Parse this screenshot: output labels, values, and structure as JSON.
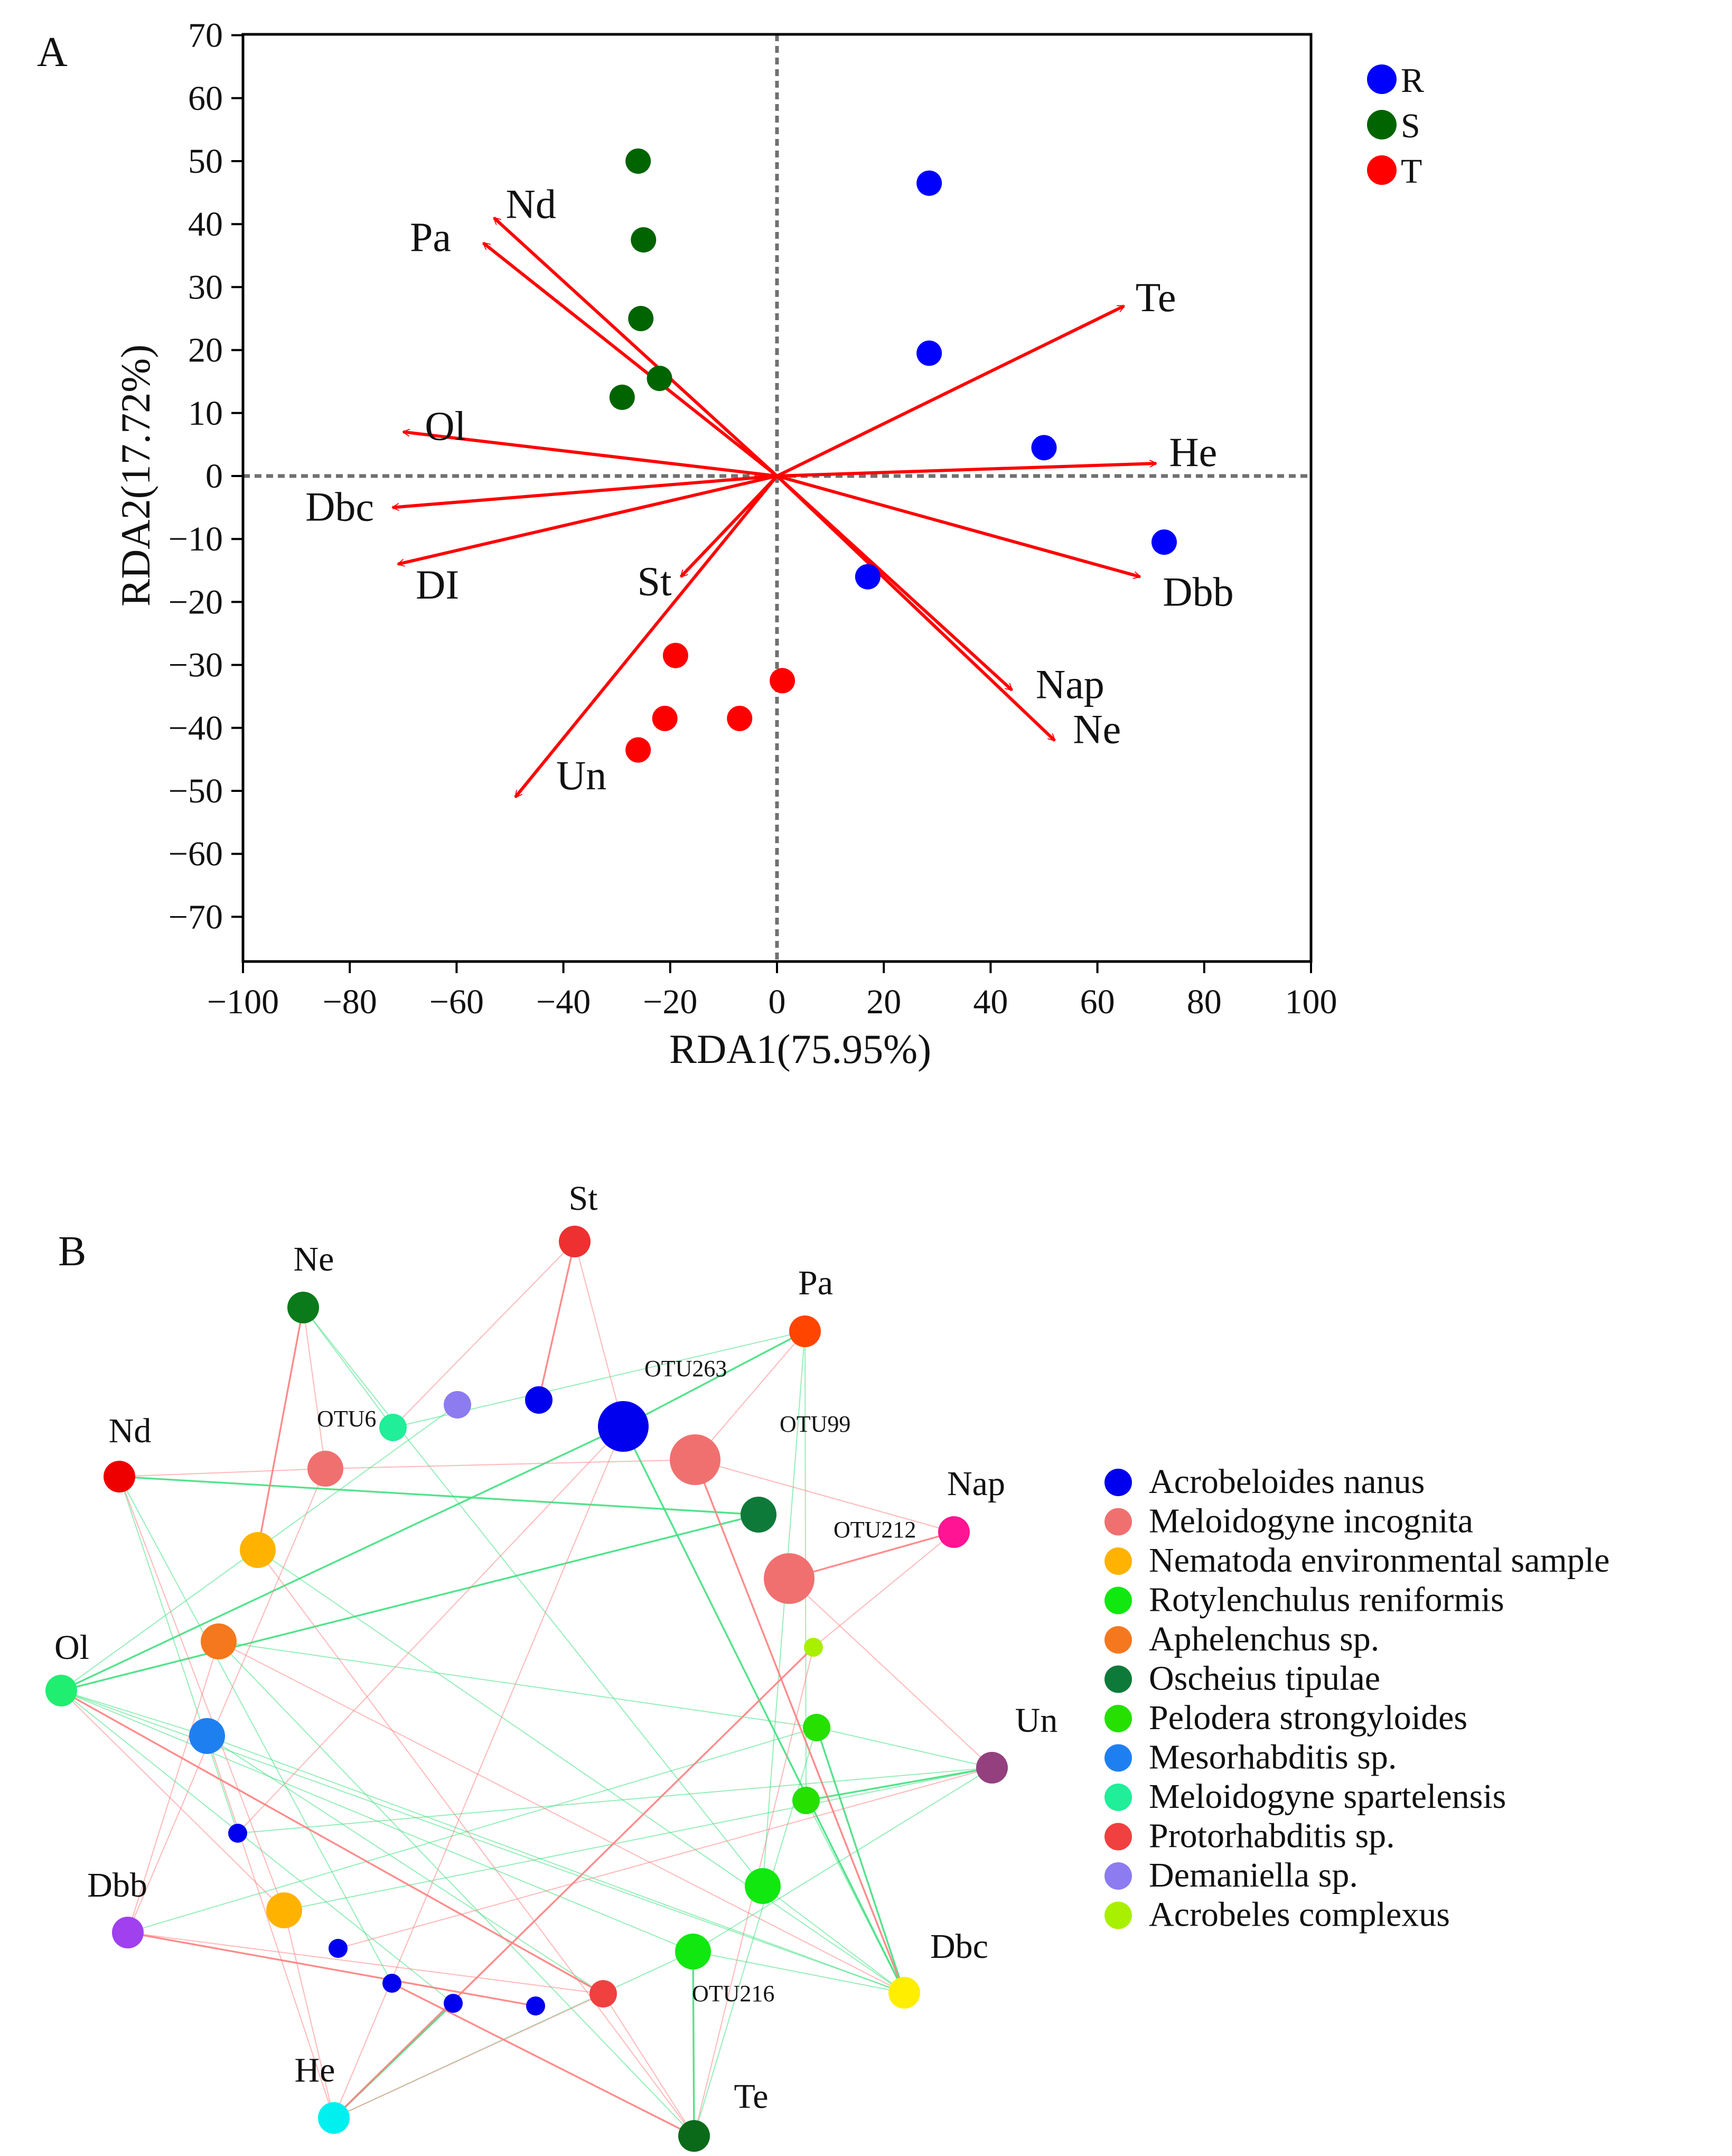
{
  "panel_a_label": "A",
  "panel_b_label": "B",
  "colors": {
    "R": "#0000ff",
    "S": "#006400",
    "T": "#ff0000",
    "arrow": "#ff0000",
    "axis": "#000000",
    "zero_line": "#707070",
    "edge_positive": "#ff8080",
    "edge_negative": "#40e080"
  },
  "chart_data": [
    {
      "type": "scatter",
      "title": "",
      "xlabel": "RDA1(75.95%)",
      "ylabel": "RDA2(17.72%)",
      "xlim": [
        -100,
        100
      ],
      "ylim": [
        -78,
        70
      ],
      "xticks": [
        -100,
        -80,
        -60,
        -40,
        -20,
        0,
        20,
        40,
        60,
        80,
        100
      ],
      "yticks": [
        70,
        60,
        50,
        40,
        30,
        20,
        10,
        0,
        -10,
        -20,
        -30,
        -40,
        -50,
        -60,
        -70
      ],
      "zero_lines": true,
      "legend_placement": "top-right, outside",
      "series": [
        {
          "name": "R",
          "points": [
            [
              28.5,
              46.5
            ],
            [
              28.5,
              19.5
            ],
            [
              50,
              4.5
            ],
            [
              72.5,
              -10.5
            ],
            [
              17,
              -16
            ]
          ]
        },
        {
          "name": "S",
          "points": [
            [
              -26,
              50
            ],
            [
              -25,
              37.5
            ],
            [
              -25.5,
              25
            ],
            [
              -22,
              15.5
            ],
            [
              -29,
              12.5
            ]
          ]
        },
        {
          "name": "T",
          "points": [
            [
              -19,
              -28.5
            ],
            [
              1,
              -32.5
            ],
            [
              -21,
              -38.5
            ],
            [
              -7,
              -38.5
            ],
            [
              -26,
              -43.5
            ]
          ]
        }
      ],
      "vectors": [
        {
          "label": "Nd",
          "x": -53,
          "y": 41
        },
        {
          "label": "Pa",
          "x": -55,
          "y": 37
        },
        {
          "label": "Te",
          "x": 65,
          "y": 27
        },
        {
          "label": "He",
          "x": 71,
          "y": 2
        },
        {
          "label": "Ol",
          "x": -70,
          "y": 7
        },
        {
          "label": "Dbc",
          "x": -72,
          "y": -5
        },
        {
          "label": "DI",
          "x": -71,
          "y": -14
        },
        {
          "label": "St",
          "x": -18,
          "y": -16
        },
        {
          "label": "Dbb",
          "x": 68,
          "y": -16
        },
        {
          "label": "Nap",
          "x": 44,
          "y": -34
        },
        {
          "label": "Ne",
          "x": 52,
          "y": -42
        },
        {
          "label": "Un",
          "x": -49,
          "y": -51
        }
      ]
    },
    {
      "type": "network",
      "title": "",
      "legend": [
        {
          "name": "Acrobeloides nanus",
          "color": "#0000ee"
        },
        {
          "name": "Meloidogyne incognita",
          "color": "#f07070"
        },
        {
          "name": "Nematoda environmental sample",
          "color": "#ffb300"
        },
        {
          "name": "Rotylenchulus reniformis",
          "color": "#10e810"
        },
        {
          "name": "Aphelenchus sp.",
          "color": "#f5781e"
        },
        {
          "name": "Oscheius tipulae",
          "color": "#0d7a3a"
        },
        {
          "name": "Pelodera strongyloides",
          "color": "#26e000"
        },
        {
          "name": "Mesorhabditis sp.",
          "color": "#1e80f0"
        },
        {
          "name": "Meloidogyne spartelensis",
          "color": "#20ee98"
        },
        {
          "name": "Protorhabditis sp.",
          "color": "#f04040"
        },
        {
          "name": "Demaniella sp.",
          "color": "#8c7cf0"
        },
        {
          "name": "Acrobeles complexus",
          "color": "#a8f000"
        }
      ],
      "env_nodes": [
        {
          "id": "St",
          "label": "St",
          "color": "#ee3030"
        },
        {
          "id": "Ne",
          "label": "Ne",
          "color": "#0a7a1a"
        },
        {
          "id": "Pa",
          "label": "Pa",
          "color": "#ff4500"
        },
        {
          "id": "Nd",
          "label": "Nd",
          "color": "#ee0000"
        },
        {
          "id": "Nap",
          "label": "Nap",
          "color": "#ff1493"
        },
        {
          "id": "Ol",
          "label": "Ol",
          "color": "#20ee70"
        },
        {
          "id": "Un",
          "label": "Un",
          "color": "#94407f"
        },
        {
          "id": "Dbb",
          "label": "Dbb",
          "color": "#a040ee"
        },
        {
          "id": "Dbc",
          "label": "Dbc",
          "color": "#ffee00"
        },
        {
          "id": "He",
          "label": "He",
          "color": "#00f0f0"
        },
        {
          "id": "Te",
          "label": "Te",
          "color": "#0a6a1a"
        }
      ],
      "otu_nodes": [
        {
          "id": "OTU263",
          "label": "OTU263",
          "group": 0,
          "size": 3
        },
        {
          "id": "OTU99",
          "label": "OTU99",
          "group": 1,
          "size": 3
        },
        {
          "id": "OTU6",
          "label": "OTU6",
          "group": 1,
          "size": 2
        },
        {
          "id": "OTU212",
          "label": "OTU212",
          "group": 1,
          "size": 3
        },
        {
          "id": "OTU216",
          "label": "OTU216",
          "group": 9,
          "size": 1
        },
        {
          "id": "n1",
          "label": "",
          "group": 10,
          "size": 1
        },
        {
          "id": "n2",
          "label": "",
          "group": 0,
          "size": 1
        },
        {
          "id": "n3",
          "label": "",
          "group": 8,
          "size": 1
        },
        {
          "id": "n4",
          "label": "",
          "group": 5,
          "size": 2
        },
        {
          "id": "n5",
          "label": "",
          "group": 2,
          "size": 2
        },
        {
          "id": "n6",
          "label": "",
          "group": 4,
          "size": 2
        },
        {
          "id": "n7",
          "label": "",
          "group": 7,
          "size": 2
        },
        {
          "id": "n8",
          "label": "",
          "group": 0,
          "size": 0
        },
        {
          "id": "n9",
          "label": "",
          "group": 2,
          "size": 2
        },
        {
          "id": "n10",
          "label": "",
          "group": 0,
          "size": 0
        },
        {
          "id": "n11",
          "label": "",
          "group": 0,
          "size": 0
        },
        {
          "id": "n12",
          "label": "",
          "group": 0,
          "size": 0
        },
        {
          "id": "n13",
          "label": "",
          "group": 0,
          "size": 0
        },
        {
          "id": "n14",
          "label": "",
          "group": 11,
          "size": 0
        },
        {
          "id": "n15",
          "label": "",
          "group": 6,
          "size": 1
        },
        {
          "id": "n16",
          "label": "",
          "group": 6,
          "size": 1
        },
        {
          "id": "n17",
          "label": "",
          "group": 3,
          "size": 2
        },
        {
          "id": "n18",
          "label": "",
          "group": 3,
          "size": 2
        }
      ],
      "edges_positive": [
        [
          "St",
          "n2"
        ],
        [
          "St",
          "OTU263"
        ],
        [
          "St",
          "n3"
        ],
        [
          "Ne",
          "OTU6"
        ],
        [
          "Ne",
          "n5"
        ],
        [
          "Nd",
          "OTU6"
        ],
        [
          "Nd",
          "n9"
        ],
        [
          "Pa",
          "OTU99"
        ],
        [
          "Nap",
          "OTU212"
        ],
        [
          "Nap",
          "n14"
        ],
        [
          "Nap",
          "OTU99"
        ],
        [
          "Ol",
          "n9"
        ],
        [
          "Ol",
          "OTU216"
        ],
        [
          "Dbb",
          "OTU6"
        ],
        [
          "Dbb",
          "n6"
        ],
        [
          "Dbb",
          "OTU216"
        ],
        [
          "Dbb",
          "n13"
        ],
        [
          "He",
          "OTU263"
        ],
        [
          "He",
          "OTU216"
        ],
        [
          "He",
          "n9"
        ],
        [
          "He",
          "n14"
        ],
        [
          "He",
          "n7"
        ],
        [
          "Te",
          "OTU216"
        ],
        [
          "Te",
          "n14"
        ],
        [
          "Te",
          "n11"
        ],
        [
          "Te",
          "n5"
        ],
        [
          "Un",
          "OTU212"
        ],
        [
          "Un",
          "n10"
        ],
        [
          "Dbc",
          "OTU99"
        ],
        [
          "Dbc",
          "n6"
        ],
        [
          "OTU263",
          "n8"
        ],
        [
          "OTU6",
          "OTU99"
        ]
      ],
      "edges_negative": [
        [
          "Pa",
          "OTU263"
        ],
        [
          "Pa",
          "n16"
        ],
        [
          "Pa",
          "n3"
        ],
        [
          "Pa",
          "n17"
        ],
        [
          "Ol",
          "OTU263"
        ],
        [
          "Ol",
          "n1"
        ],
        [
          "Ol",
          "n7"
        ],
        [
          "Ol",
          "n18"
        ],
        [
          "Ol",
          "n4"
        ],
        [
          "Ol",
          "n12"
        ],
        [
          "Ol",
          "Dbc"
        ],
        [
          "Nd",
          "n8"
        ],
        [
          "Nd",
          "n4"
        ],
        [
          "Nd",
          "n11"
        ],
        [
          "Ne",
          "n3"
        ],
        [
          "Ne",
          "n17"
        ],
        [
          "Dbc",
          "n15"
        ],
        [
          "Dbc",
          "n16"
        ],
        [
          "Dbc",
          "n17"
        ],
        [
          "Dbc",
          "n18"
        ],
        [
          "Dbc",
          "OTU263"
        ],
        [
          "Dbc",
          "n7"
        ],
        [
          "Dbc",
          "n5"
        ],
        [
          "Un",
          "n15"
        ],
        [
          "Un",
          "n16"
        ],
        [
          "Un",
          "n18"
        ],
        [
          "Un",
          "n9"
        ],
        [
          "Un",
          "n8"
        ],
        [
          "Te",
          "n18"
        ],
        [
          "Te",
          "n15"
        ],
        [
          "Te",
          "n6"
        ],
        [
          "He",
          "n18"
        ],
        [
          "He",
          "n12"
        ],
        [
          "Dbb",
          "n15"
        ],
        [
          "OTU216",
          "n7"
        ],
        [
          "n6",
          "n15"
        ]
      ]
    }
  ]
}
